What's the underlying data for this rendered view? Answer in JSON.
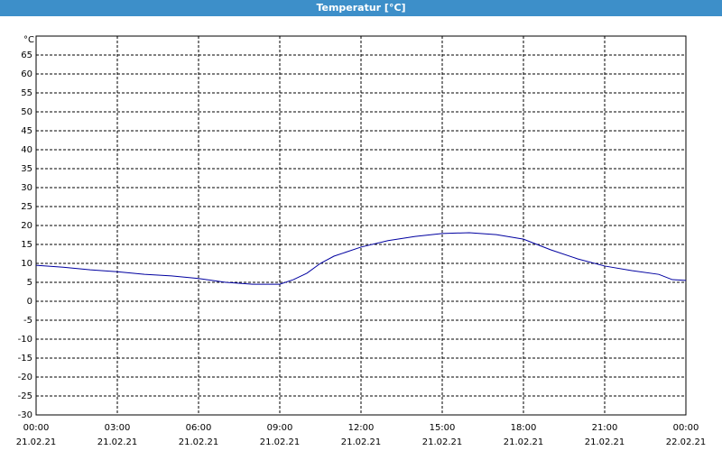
{
  "chart_data": {
    "type": "line",
    "title": "Temperatur [°C]",
    "y_unit": "°C",
    "x": [
      0,
      1,
      2,
      3,
      4,
      5,
      6,
      7,
      8,
      9,
      9.5,
      10,
      10.5,
      11,
      12,
      13,
      14,
      15,
      16,
      17,
      18,
      19,
      20,
      21,
      22,
      23,
      23.5,
      24
    ],
    "series": [
      {
        "name": "Temperatur",
        "color": "#0000a0",
        "values": [
          9.5,
          9.0,
          8.3,
          7.8,
          7.1,
          6.7,
          6.0,
          5.0,
          4.5,
          4.5,
          5.7,
          7.4,
          10.0,
          11.9,
          14.3,
          16.0,
          17.1,
          17.9,
          18.1,
          17.6,
          16.4,
          13.6,
          11.2,
          9.3,
          8.1,
          7.1,
          5.7,
          5.5
        ]
      }
    ],
    "xlim": [
      0,
      24
    ],
    "xticks": [
      {
        "value": 0,
        "label": [
          "00:00",
          "21.02.21"
        ]
      },
      {
        "value": 3,
        "label": [
          "03:00",
          "21.02.21"
        ]
      },
      {
        "value": 6,
        "label": [
          "06:00",
          "21.02.21"
        ]
      },
      {
        "value": 9,
        "label": [
          "09:00",
          "21.02.21"
        ]
      },
      {
        "value": 12,
        "label": [
          "12:00",
          "21.02.21"
        ]
      },
      {
        "value": 15,
        "label": [
          "15:00",
          "21.02.21"
        ]
      },
      {
        "value": 18,
        "label": [
          "18:00",
          "21.02.21"
        ]
      },
      {
        "value": 21,
        "label": [
          "21:00",
          "21.02.21"
        ]
      },
      {
        "value": 24,
        "label": [
          "00:00",
          "22.02.21"
        ]
      }
    ],
    "ylim": [
      -30,
      70
    ],
    "yticks": [
      -30,
      -25,
      -20,
      -15,
      -10,
      -5,
      0,
      5,
      10,
      15,
      20,
      25,
      30,
      35,
      40,
      45,
      50,
      55,
      60,
      65
    ],
    "grid": true
  }
}
